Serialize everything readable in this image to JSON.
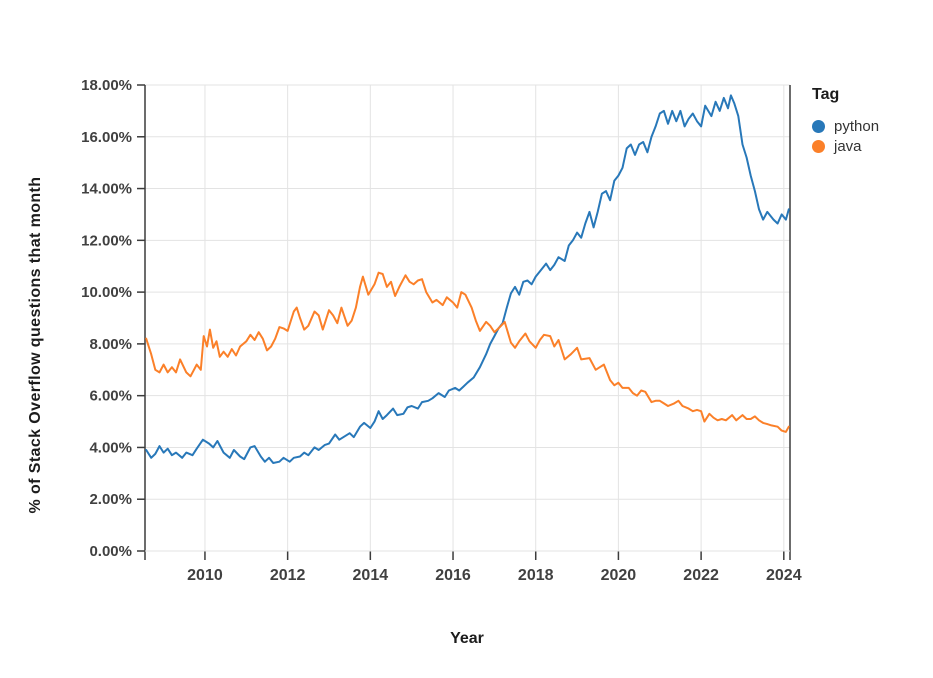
{
  "chart_data": {
    "type": "line",
    "title": "",
    "xlabel": "Year",
    "ylabel": "% of Stack Overflow questions that  month",
    "legend_title": "Tag",
    "legend_position": "top-right",
    "grid": true,
    "xlim": [
      2008.55,
      2024.15
    ],
    "ylim": [
      0,
      18
    ],
    "x_ticks": [
      {
        "value": 2010,
        "label": "2010"
      },
      {
        "value": 2012,
        "label": "2012"
      },
      {
        "value": 2014,
        "label": "2014"
      },
      {
        "value": 2016,
        "label": "2016"
      },
      {
        "value": 2018,
        "label": "2018"
      },
      {
        "value": 2020,
        "label": "2020"
      },
      {
        "value": 2022,
        "label": "2022"
      },
      {
        "value": 2024,
        "label": "2024"
      }
    ],
    "y_ticks": [
      {
        "value": 0,
        "label": "0.00%"
      },
      {
        "value": 2,
        "label": "2.00%"
      },
      {
        "value": 4,
        "label": "4.00%"
      },
      {
        "value": 6,
        "label": "6.00%"
      },
      {
        "value": 8,
        "label": "8.00%"
      },
      {
        "value": 10,
        "label": "10.00%"
      },
      {
        "value": 12,
        "label": "12.00%"
      },
      {
        "value": 14,
        "label": "14.00%"
      },
      {
        "value": 16,
        "label": "16.00%"
      },
      {
        "value": 18,
        "label": "18.00%"
      }
    ],
    "colors": {
      "grid": "#e3e3e3",
      "axis": "#3c3c3c",
      "tick_text": "#404040"
    },
    "series": [
      {
        "name": "python",
        "color": "#2878B9",
        "points": [
          [
            2008.58,
            3.9
          ],
          [
            2008.7,
            3.6
          ],
          [
            2008.8,
            3.75
          ],
          [
            2008.9,
            4.05
          ],
          [
            2009.0,
            3.8
          ],
          [
            2009.1,
            3.95
          ],
          [
            2009.2,
            3.7
          ],
          [
            2009.3,
            3.8
          ],
          [
            2009.45,
            3.6
          ],
          [
            2009.55,
            3.8
          ],
          [
            2009.7,
            3.7
          ],
          [
            2009.8,
            3.95
          ],
          [
            2009.95,
            4.3
          ],
          [
            2010.1,
            4.15
          ],
          [
            2010.2,
            4.0
          ],
          [
            2010.3,
            4.25
          ],
          [
            2010.45,
            3.8
          ],
          [
            2010.6,
            3.6
          ],
          [
            2010.7,
            3.9
          ],
          [
            2010.85,
            3.65
          ],
          [
            2010.95,
            3.55
          ],
          [
            2011.1,
            4.0
          ],
          [
            2011.2,
            4.05
          ],
          [
            2011.35,
            3.65
          ],
          [
            2011.45,
            3.45
          ],
          [
            2011.55,
            3.6
          ],
          [
            2011.65,
            3.4
          ],
          [
            2011.8,
            3.45
          ],
          [
            2011.9,
            3.6
          ],
          [
            2012.05,
            3.45
          ],
          [
            2012.15,
            3.6
          ],
          [
            2012.3,
            3.65
          ],
          [
            2012.4,
            3.8
          ],
          [
            2012.5,
            3.7
          ],
          [
            2012.65,
            4.0
          ],
          [
            2012.75,
            3.9
          ],
          [
            2012.9,
            4.1
          ],
          [
            2013.0,
            4.15
          ],
          [
            2013.15,
            4.5
          ],
          [
            2013.25,
            4.3
          ],
          [
            2013.4,
            4.45
          ],
          [
            2013.5,
            4.55
          ],
          [
            2013.6,
            4.4
          ],
          [
            2013.75,
            4.8
          ],
          [
            2013.85,
            4.95
          ],
          [
            2014.0,
            4.75
          ],
          [
            2014.1,
            5.0
          ],
          [
            2014.2,
            5.4
          ],
          [
            2014.3,
            5.1
          ],
          [
            2014.4,
            5.25
          ],
          [
            2014.55,
            5.5
          ],
          [
            2014.65,
            5.25
          ],
          [
            2014.8,
            5.3
          ],
          [
            2014.9,
            5.55
          ],
          [
            2015.0,
            5.6
          ],
          [
            2015.15,
            5.5
          ],
          [
            2015.25,
            5.75
          ],
          [
            2015.4,
            5.8
          ],
          [
            2015.5,
            5.9
          ],
          [
            2015.65,
            6.1
          ],
          [
            2015.8,
            5.95
          ],
          [
            2015.9,
            6.2
          ],
          [
            2016.05,
            6.3
          ],
          [
            2016.15,
            6.2
          ],
          [
            2016.25,
            6.35
          ],
          [
            2016.35,
            6.5
          ],
          [
            2016.5,
            6.7
          ],
          [
            2016.65,
            7.1
          ],
          [
            2016.8,
            7.6
          ],
          [
            2016.9,
            8.0
          ],
          [
            2017.0,
            8.3
          ],
          [
            2017.1,
            8.6
          ],
          [
            2017.2,
            8.8
          ],
          [
            2017.3,
            9.4
          ],
          [
            2017.4,
            9.95
          ],
          [
            2017.5,
            10.2
          ],
          [
            2017.6,
            9.9
          ],
          [
            2017.7,
            10.4
          ],
          [
            2017.8,
            10.45
          ],
          [
            2017.9,
            10.3
          ],
          [
            2018.0,
            10.6
          ],
          [
            2018.1,
            10.8
          ],
          [
            2018.25,
            11.1
          ],
          [
            2018.35,
            10.85
          ],
          [
            2018.45,
            11.05
          ],
          [
            2018.55,
            11.35
          ],
          [
            2018.7,
            11.2
          ],
          [
            2018.8,
            11.8
          ],
          [
            2018.9,
            12.0
          ],
          [
            2019.0,
            12.3
          ],
          [
            2019.1,
            12.1
          ],
          [
            2019.2,
            12.65
          ],
          [
            2019.3,
            13.1
          ],
          [
            2019.4,
            12.5
          ],
          [
            2019.5,
            13.1
          ],
          [
            2019.6,
            13.8
          ],
          [
            2019.7,
            13.9
          ],
          [
            2019.8,
            13.55
          ],
          [
            2019.9,
            14.3
          ],
          [
            2020.0,
            14.5
          ],
          [
            2020.1,
            14.8
          ],
          [
            2020.2,
            15.55
          ],
          [
            2020.3,
            15.7
          ],
          [
            2020.4,
            15.3
          ],
          [
            2020.5,
            15.7
          ],
          [
            2020.6,
            15.8
          ],
          [
            2020.7,
            15.4
          ],
          [
            2020.8,
            16.0
          ],
          [
            2020.9,
            16.4
          ],
          [
            2021.0,
            16.9
          ],
          [
            2021.1,
            17.0
          ],
          [
            2021.2,
            16.5
          ],
          [
            2021.3,
            17.0
          ],
          [
            2021.4,
            16.6
          ],
          [
            2021.5,
            17.0
          ],
          [
            2021.6,
            16.4
          ],
          [
            2021.7,
            16.7
          ],
          [
            2021.8,
            16.9
          ],
          [
            2021.9,
            16.6
          ],
          [
            2022.0,
            16.4
          ],
          [
            2022.1,
            17.2
          ],
          [
            2022.25,
            16.8
          ],
          [
            2022.35,
            17.35
          ],
          [
            2022.45,
            17.0
          ],
          [
            2022.55,
            17.5
          ],
          [
            2022.65,
            17.1
          ],
          [
            2022.72,
            17.6
          ],
          [
            2022.8,
            17.3
          ],
          [
            2022.9,
            16.8
          ],
          [
            2023.0,
            15.7
          ],
          [
            2023.1,
            15.2
          ],
          [
            2023.2,
            14.5
          ],
          [
            2023.3,
            13.9
          ],
          [
            2023.4,
            13.2
          ],
          [
            2023.5,
            12.8
          ],
          [
            2023.6,
            13.1
          ],
          [
            2023.75,
            12.8
          ],
          [
            2023.85,
            12.65
          ],
          [
            2023.95,
            13.0
          ],
          [
            2024.05,
            12.8
          ],
          [
            2024.12,
            13.2
          ]
        ]
      },
      {
        "name": "java",
        "color": "#FB8029",
        "points": [
          [
            2008.58,
            8.2
          ],
          [
            2008.7,
            7.6
          ],
          [
            2008.8,
            7.0
          ],
          [
            2008.9,
            6.9
          ],
          [
            2009.0,
            7.2
          ],
          [
            2009.1,
            6.9
          ],
          [
            2009.2,
            7.1
          ],
          [
            2009.3,
            6.9
          ],
          [
            2009.4,
            7.4
          ],
          [
            2009.55,
            6.9
          ],
          [
            2009.65,
            6.75
          ],
          [
            2009.8,
            7.2
          ],
          [
            2009.9,
            7.0
          ],
          [
            2009.97,
            8.3
          ],
          [
            2010.05,
            7.9
          ],
          [
            2010.12,
            8.55
          ],
          [
            2010.2,
            7.85
          ],
          [
            2010.28,
            8.1
          ],
          [
            2010.36,
            7.5
          ],
          [
            2010.45,
            7.7
          ],
          [
            2010.55,
            7.5
          ],
          [
            2010.65,
            7.8
          ],
          [
            2010.75,
            7.55
          ],
          [
            2010.85,
            7.9
          ],
          [
            2011.0,
            8.1
          ],
          [
            2011.1,
            8.35
          ],
          [
            2011.2,
            8.15
          ],
          [
            2011.3,
            8.45
          ],
          [
            2011.4,
            8.2
          ],
          [
            2011.5,
            7.75
          ],
          [
            2011.6,
            7.9
          ],
          [
            2011.7,
            8.2
          ],
          [
            2011.8,
            8.65
          ],
          [
            2011.9,
            8.6
          ],
          [
            2012.0,
            8.5
          ],
          [
            2012.15,
            9.25
          ],
          [
            2012.22,
            9.4
          ],
          [
            2012.3,
            9.0
          ],
          [
            2012.4,
            8.55
          ],
          [
            2012.5,
            8.7
          ],
          [
            2012.65,
            9.25
          ],
          [
            2012.75,
            9.1
          ],
          [
            2012.85,
            8.55
          ],
          [
            2012.92,
            8.9
          ],
          [
            2013.0,
            9.3
          ],
          [
            2013.1,
            9.1
          ],
          [
            2013.2,
            8.8
          ],
          [
            2013.3,
            9.4
          ],
          [
            2013.45,
            8.7
          ],
          [
            2013.55,
            8.9
          ],
          [
            2013.65,
            9.4
          ],
          [
            2013.75,
            10.2
          ],
          [
            2013.82,
            10.6
          ],
          [
            2013.95,
            9.9
          ],
          [
            2014.1,
            10.3
          ],
          [
            2014.2,
            10.75
          ],
          [
            2014.3,
            10.7
          ],
          [
            2014.4,
            10.2
          ],
          [
            2014.5,
            10.4
          ],
          [
            2014.6,
            9.85
          ],
          [
            2014.7,
            10.2
          ],
          [
            2014.85,
            10.65
          ],
          [
            2014.95,
            10.4
          ],
          [
            2015.05,
            10.3
          ],
          [
            2015.15,
            10.45
          ],
          [
            2015.25,
            10.5
          ],
          [
            2015.35,
            10.0
          ],
          [
            2015.5,
            9.6
          ],
          [
            2015.6,
            9.7
          ],
          [
            2015.75,
            9.5
          ],
          [
            2015.85,
            9.8
          ],
          [
            2016.0,
            9.6
          ],
          [
            2016.1,
            9.4
          ],
          [
            2016.2,
            10.0
          ],
          [
            2016.3,
            9.9
          ],
          [
            2016.45,
            9.4
          ],
          [
            2016.55,
            8.9
          ],
          [
            2016.65,
            8.5
          ],
          [
            2016.8,
            8.85
          ],
          [
            2016.9,
            8.7
          ],
          [
            2017.0,
            8.45
          ],
          [
            2017.1,
            8.6
          ],
          [
            2017.25,
            8.85
          ],
          [
            2017.4,
            8.05
          ],
          [
            2017.5,
            7.85
          ],
          [
            2017.6,
            8.1
          ],
          [
            2017.75,
            8.4
          ],
          [
            2017.85,
            8.1
          ],
          [
            2018.0,
            7.85
          ],
          [
            2018.1,
            8.15
          ],
          [
            2018.2,
            8.35
          ],
          [
            2018.35,
            8.3
          ],
          [
            2018.45,
            7.9
          ],
          [
            2018.55,
            8.15
          ],
          [
            2018.7,
            7.4
          ],
          [
            2018.85,
            7.6
          ],
          [
            2019.0,
            7.85
          ],
          [
            2019.1,
            7.4
          ],
          [
            2019.3,
            7.45
          ],
          [
            2019.45,
            7.0
          ],
          [
            2019.55,
            7.1
          ],
          [
            2019.65,
            7.2
          ],
          [
            2019.8,
            6.6
          ],
          [
            2019.9,
            6.4
          ],
          [
            2020.0,
            6.5
          ],
          [
            2020.1,
            6.3
          ],
          [
            2020.25,
            6.3
          ],
          [
            2020.35,
            6.1
          ],
          [
            2020.45,
            6.0
          ],
          [
            2020.55,
            6.2
          ],
          [
            2020.65,
            6.15
          ],
          [
            2020.8,
            5.75
          ],
          [
            2020.9,
            5.8
          ],
          [
            2021.0,
            5.8
          ],
          [
            2021.1,
            5.7
          ],
          [
            2021.2,
            5.6
          ],
          [
            2021.35,
            5.7
          ],
          [
            2021.45,
            5.8
          ],
          [
            2021.55,
            5.6
          ],
          [
            2021.7,
            5.5
          ],
          [
            2021.8,
            5.4
          ],
          [
            2021.9,
            5.45
          ],
          [
            2022.0,
            5.4
          ],
          [
            2022.08,
            5.0
          ],
          [
            2022.2,
            5.3
          ],
          [
            2022.3,
            5.15
          ],
          [
            2022.4,
            5.05
          ],
          [
            2022.5,
            5.1
          ],
          [
            2022.6,
            5.05
          ],
          [
            2022.75,
            5.25
          ],
          [
            2022.85,
            5.05
          ],
          [
            2023.0,
            5.25
          ],
          [
            2023.1,
            5.1
          ],
          [
            2023.2,
            5.1
          ],
          [
            2023.3,
            5.2
          ],
          [
            2023.4,
            5.05
          ],
          [
            2023.5,
            4.95
          ],
          [
            2023.6,
            4.9
          ],
          [
            2023.7,
            4.85
          ],
          [
            2023.85,
            4.8
          ],
          [
            2023.95,
            4.65
          ],
          [
            2024.05,
            4.6
          ],
          [
            2024.12,
            4.8
          ]
        ]
      }
    ]
  }
}
